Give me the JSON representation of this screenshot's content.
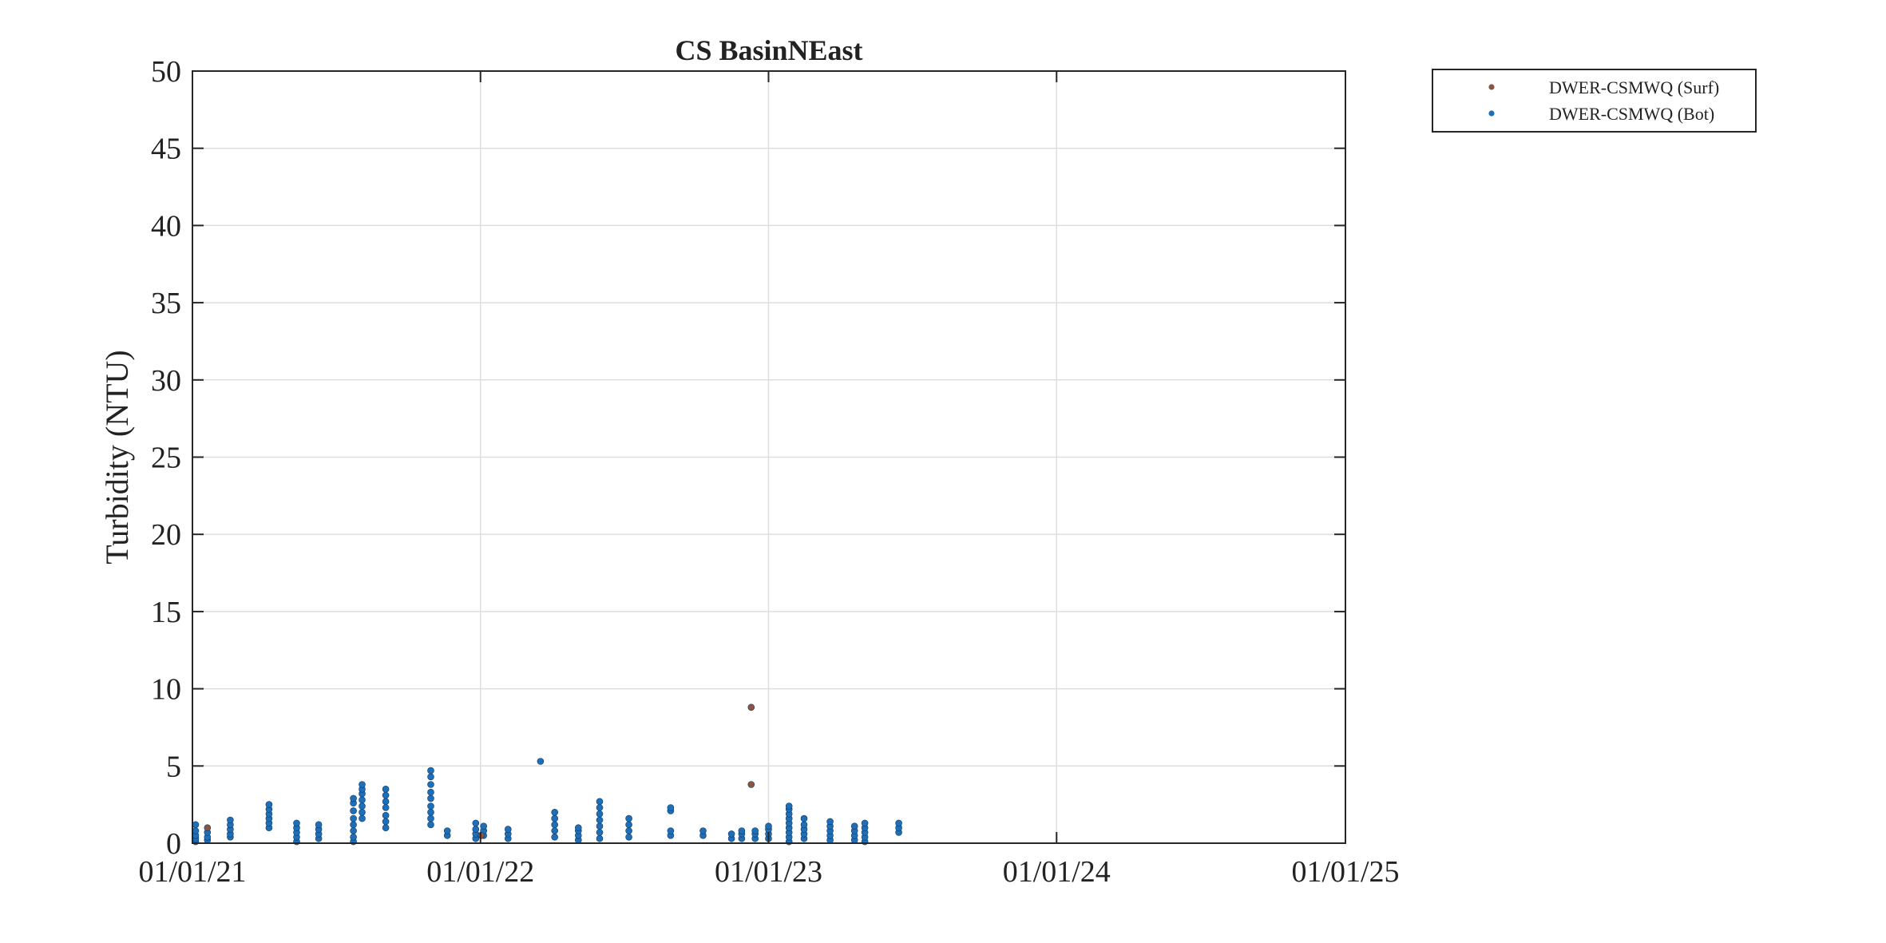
{
  "chart_data": {
    "type": "scatter",
    "title": "CS BasinNEast",
    "xlabel": "",
    "ylabel": "Turbidity (NTU)",
    "x_axis": {
      "type": "date",
      "range": [
        "2021-01-01",
        "2025-01-01"
      ],
      "ticks": [
        "2021-01-01",
        "2022-01-01",
        "2023-01-01",
        "2024-01-01",
        "2025-01-01"
      ],
      "tick_labels": [
        "01/01/21",
        "01/01/22",
        "01/01/23",
        "01/01/24",
        "01/01/25"
      ]
    },
    "ylim": [
      0,
      50
    ],
    "yticks": [
      0,
      5,
      10,
      15,
      20,
      25,
      30,
      35,
      40,
      45,
      50
    ],
    "ytick_labels": [
      "0",
      "5",
      "10",
      "15",
      "20",
      "25",
      "30",
      "35",
      "40",
      "45",
      "50"
    ],
    "grid": true,
    "legend_position": "outside top-right",
    "series": [
      {
        "name": "DWER-CSMWQ (Surf)",
        "color": "#8b5442",
        "marker": "circle",
        "points": [
          [
            "2021-01-20",
            1.0
          ],
          [
            "2022-01-02",
            0.5
          ],
          [
            "2022-12-10",
            8.8
          ],
          [
            "2022-12-10",
            3.8
          ]
        ]
      },
      {
        "name": "DWER-CSMWQ (Bot)",
        "color": "#1f6fb8",
        "marker": "circle",
        "points": [
          [
            "2021-01-05",
            0.1
          ],
          [
            "2021-01-05",
            0.3
          ],
          [
            "2021-01-05",
            0.5
          ],
          [
            "2021-01-05",
            0.8
          ],
          [
            "2021-01-05",
            1.2
          ],
          [
            "2021-01-20",
            0.2
          ],
          [
            "2021-01-20",
            0.4
          ],
          [
            "2021-01-20",
            0.7
          ],
          [
            "2021-02-18",
            0.4
          ],
          [
            "2021-02-18",
            0.6
          ],
          [
            "2021-02-18",
            0.9
          ],
          [
            "2021-02-18",
            1.2
          ],
          [
            "2021-02-18",
            1.5
          ],
          [
            "2021-04-08",
            1.0
          ],
          [
            "2021-04-08",
            1.3
          ],
          [
            "2021-04-08",
            1.6
          ],
          [
            "2021-04-08",
            1.9
          ],
          [
            "2021-04-08",
            2.2
          ],
          [
            "2021-04-08",
            2.5
          ],
          [
            "2021-05-13",
            0.1
          ],
          [
            "2021-05-13",
            0.4
          ],
          [
            "2021-05-13",
            0.7
          ],
          [
            "2021-05-13",
            1.0
          ],
          [
            "2021-05-13",
            1.3
          ],
          [
            "2021-06-10",
            0.3
          ],
          [
            "2021-06-10",
            0.6
          ],
          [
            "2021-06-10",
            0.9
          ],
          [
            "2021-06-10",
            1.2
          ],
          [
            "2021-07-24",
            0.1
          ],
          [
            "2021-07-24",
            0.4
          ],
          [
            "2021-07-24",
            0.8
          ],
          [
            "2021-07-24",
            1.2
          ],
          [
            "2021-07-24",
            1.6
          ],
          [
            "2021-07-24",
            2.1
          ],
          [
            "2021-07-24",
            2.6
          ],
          [
            "2021-07-24",
            2.9
          ],
          [
            "2021-08-04",
            1.6
          ],
          [
            "2021-08-04",
            2.0
          ],
          [
            "2021-08-04",
            2.4
          ],
          [
            "2021-08-04",
            2.8
          ],
          [
            "2021-08-04",
            3.2
          ],
          [
            "2021-08-04",
            3.5
          ],
          [
            "2021-08-04",
            3.8
          ],
          [
            "2021-09-03",
            1.0
          ],
          [
            "2021-09-03",
            1.4
          ],
          [
            "2021-09-03",
            1.8
          ],
          [
            "2021-09-03",
            2.3
          ],
          [
            "2021-09-03",
            2.7
          ],
          [
            "2021-09-03",
            3.1
          ],
          [
            "2021-09-03",
            3.5
          ],
          [
            "2021-10-30",
            1.2
          ],
          [
            "2021-10-30",
            1.6
          ],
          [
            "2021-10-30",
            2.0
          ],
          [
            "2021-10-30",
            2.4
          ],
          [
            "2021-10-30",
            2.9
          ],
          [
            "2021-10-30",
            3.3
          ],
          [
            "2021-10-30",
            3.8
          ],
          [
            "2021-10-30",
            4.3
          ],
          [
            "2021-10-30",
            4.7
          ],
          [
            "2021-11-20",
            0.5
          ],
          [
            "2021-11-20",
            0.8
          ],
          [
            "2021-12-26",
            0.3
          ],
          [
            "2021-12-26",
            0.6
          ],
          [
            "2021-12-26",
            0.9
          ],
          [
            "2021-12-26",
            1.3
          ],
          [
            "2022-01-05",
            0.5
          ],
          [
            "2022-01-05",
            0.8
          ],
          [
            "2022-01-05",
            1.1
          ],
          [
            "2022-02-05",
            0.3
          ],
          [
            "2022-02-05",
            0.6
          ],
          [
            "2022-02-05",
            0.9
          ],
          [
            "2022-03-18",
            5.3
          ],
          [
            "2022-04-05",
            0.4
          ],
          [
            "2022-04-05",
            0.8
          ],
          [
            "2022-04-05",
            1.2
          ],
          [
            "2022-04-05",
            1.6
          ],
          [
            "2022-04-05",
            2.0
          ],
          [
            "2022-05-05",
            0.2
          ],
          [
            "2022-05-05",
            0.5
          ],
          [
            "2022-05-05",
            0.8
          ],
          [
            "2022-05-05",
            1.0
          ],
          [
            "2022-06-01",
            0.3
          ],
          [
            "2022-06-01",
            0.7
          ],
          [
            "2022-06-01",
            1.1
          ],
          [
            "2022-06-01",
            1.5
          ],
          [
            "2022-06-01",
            1.9
          ],
          [
            "2022-06-01",
            2.3
          ],
          [
            "2022-06-01",
            2.7
          ],
          [
            "2022-07-08",
            0.4
          ],
          [
            "2022-07-08",
            0.8
          ],
          [
            "2022-07-08",
            1.2
          ],
          [
            "2022-07-08",
            1.6
          ],
          [
            "2022-08-30",
            0.5
          ],
          [
            "2022-08-30",
            0.8
          ],
          [
            "2022-08-30",
            2.1
          ],
          [
            "2022-08-30",
            2.3
          ],
          [
            "2022-10-10",
            0.5
          ],
          [
            "2022-10-10",
            0.8
          ],
          [
            "2022-11-15",
            0.3
          ],
          [
            "2022-11-15",
            0.6
          ],
          [
            "2022-11-28",
            0.3
          ],
          [
            "2022-11-28",
            0.6
          ],
          [
            "2022-11-28",
            0.8
          ],
          [
            "2022-12-15",
            0.3
          ],
          [
            "2022-12-15",
            0.6
          ],
          [
            "2022-12-15",
            0.8
          ],
          [
            "2023-01-01",
            0.3
          ],
          [
            "2023-01-01",
            0.6
          ],
          [
            "2023-01-01",
            0.9
          ],
          [
            "2023-01-01",
            1.1
          ],
          [
            "2023-01-27",
            0.1
          ],
          [
            "2023-01-27",
            0.4
          ],
          [
            "2023-01-27",
            0.7
          ],
          [
            "2023-01-27",
            1.0
          ],
          [
            "2023-01-27",
            1.3
          ],
          [
            "2023-01-27",
            1.6
          ],
          [
            "2023-01-27",
            1.9
          ],
          [
            "2023-01-27",
            2.2
          ],
          [
            "2023-01-27",
            2.4
          ],
          [
            "2023-02-15",
            0.3
          ],
          [
            "2023-02-15",
            0.6
          ],
          [
            "2023-02-15",
            0.9
          ],
          [
            "2023-02-15",
            1.2
          ],
          [
            "2023-02-15",
            1.6
          ],
          [
            "2023-03-20",
            0.2
          ],
          [
            "2023-03-20",
            0.5
          ],
          [
            "2023-03-20",
            0.8
          ],
          [
            "2023-03-20",
            1.1
          ],
          [
            "2023-03-20",
            1.4
          ],
          [
            "2023-04-20",
            0.2
          ],
          [
            "2023-04-20",
            0.5
          ],
          [
            "2023-04-20",
            0.8
          ],
          [
            "2023-04-20",
            1.1
          ],
          [
            "2023-05-03",
            0.1
          ],
          [
            "2023-05-03",
            0.4
          ],
          [
            "2023-05-03",
            0.7
          ],
          [
            "2023-05-03",
            1.0
          ],
          [
            "2023-05-03",
            1.3
          ],
          [
            "2023-06-15",
            0.7
          ],
          [
            "2023-06-15",
            1.0
          ],
          [
            "2023-06-15",
            1.3
          ]
        ]
      }
    ]
  }
}
